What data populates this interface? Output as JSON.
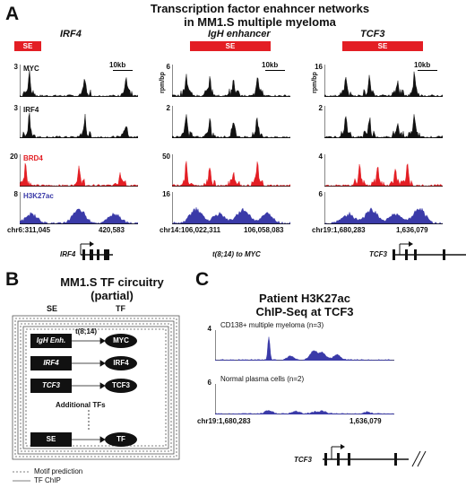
{
  "panelA": {
    "letter": "A",
    "title_line1": "Transcription factor enahncer networks",
    "title_line2": "in  MM1.S multiple myeloma",
    "se_label": "SE",
    "ylabel": "rpm/bp",
    "scale_label": "10kb",
    "tracks": [
      "MYC",
      "IRF4",
      "BRD4",
      "H3K27ac"
    ],
    "loci": [
      {
        "gene": "IRF4",
        "ymax": [
          "3",
          "3",
          "20",
          "8"
        ],
        "coord_start": "chr6:311,045",
        "coord_end": "420,583",
        "caption": "IRF4"
      },
      {
        "gene": "IgH enhancer",
        "ymax": [
          "6",
          "2",
          "50",
          "16"
        ],
        "coord_start": "chr14:106,022,311",
        "coord_end": "106,058,083",
        "caption": "t(8;14) to MYC"
      },
      {
        "gene": "TCF3",
        "ymax": [
          "16",
          "2",
          "4",
          "6"
        ],
        "coord_start": "chr19:1,680,283",
        "coord_end": "1,636,079",
        "caption": "TCF3"
      }
    ],
    "colors": {
      "black": "#111111",
      "brd4": "#e31e24",
      "h3k27ac": "#3a3aa8"
    }
  },
  "panelB": {
    "letter": "B",
    "title_line1": "MM1.S TF circuitry",
    "title_line2": "(partial)",
    "col_se": "SE",
    "col_tf": "TF",
    "rows": [
      {
        "enh": "IgH Enh.",
        "tf": "MYC",
        "link": "t(8;14)"
      },
      {
        "enh": "IRF4",
        "tf": "IRF4",
        "link": ""
      },
      {
        "enh": "TCF3",
        "tf": "TCF3",
        "link": ""
      },
      {
        "enh": "SE",
        "tf": "TF",
        "link": ""
      }
    ],
    "additional": "Additional TFs",
    "legend_motif": "Motif prediction",
    "legend_chip": "TF ChIP"
  },
  "panelC": {
    "letter": "C",
    "title_line1": "Patient H3K27ac",
    "title_line2": "ChIP-Seq at TCF3",
    "tracks": [
      {
        "label": "CD138+ multiple myeloma (n=3)",
        "ymax": "4"
      },
      {
        "label": "Normal plasma cells (n=2)",
        "ymax": "6"
      }
    ],
    "coord_start": "chr19:1,680,283",
    "coord_end": "1,636,079",
    "caption": "TCF3"
  }
}
